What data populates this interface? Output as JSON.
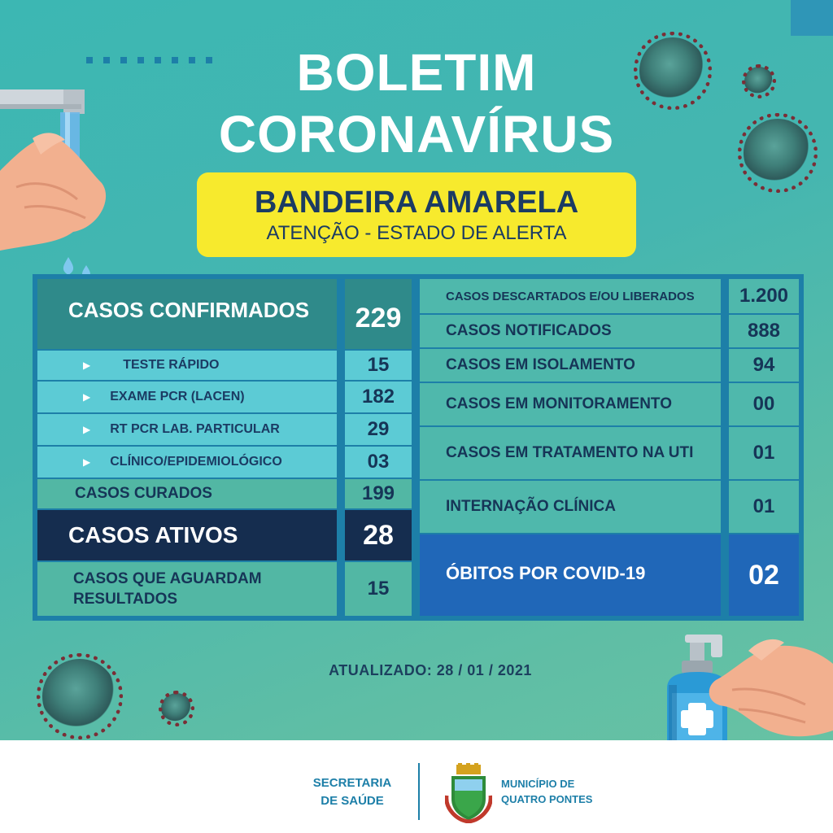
{
  "title": {
    "line1": "BOLETIM",
    "line2": "CORONAVÍRUS"
  },
  "flag": {
    "heading": "BANDEIRA AMARELA",
    "subtitle": "ATENÇÃO - ESTADO DE ALERTA",
    "color": "#f7ea2d"
  },
  "left_table": {
    "confirmed": {
      "label": "CASOS CONFIRMADOS",
      "value": "229"
    },
    "breakdown": [
      {
        "label": "TESTE RÁPIDO",
        "value": "15"
      },
      {
        "label": "EXAME PCR (LACEN)",
        "value": "182"
      },
      {
        "label": "RT PCR LAB. PARTICULAR",
        "value": "29"
      },
      {
        "label": "CLÍNICO/EPIDEMIOLÓGICO",
        "value": "03"
      }
    ],
    "cured": {
      "label": "CASOS CURADOS",
      "value": "199"
    },
    "active": {
      "label": "CASOS ATIVOS",
      "value": "28"
    },
    "awaiting": {
      "label_line1": "CASOS QUE AGUARDAM",
      "label_line2": "RESULTADOS",
      "value": "15"
    }
  },
  "right_table": [
    {
      "label": "CASOS DESCARTADOS E/OU LIBERADOS",
      "value": "1.200"
    },
    {
      "label": "CASOS NOTIFICADOS",
      "value": "888"
    },
    {
      "label": "CASOS EM ISOLAMENTO",
      "value": "94"
    },
    {
      "label": "CASOS EM MONITORAMENTO",
      "value": "00"
    },
    {
      "label": "CASOS EM TRATAMENTO NA UTI",
      "value": "01"
    },
    {
      "label": "INTERNAÇÃO CLÍNICA",
      "value": "01"
    },
    {
      "label": "ÓBITOS POR COVID-19",
      "value": "02"
    }
  ],
  "updated": "ATUALIZADO: 28 / 01 / 2021",
  "footer": {
    "secretaria_line1": "SECRETARIA",
    "secretaria_line2": "DE SAÚDE",
    "municipio_line1": "MUNICÍPIO DE",
    "municipio_line2": "QUATRO PONTES"
  },
  "icons": [
    "faucet-icon",
    "washing-hands-icon",
    "water-drop-icon",
    "virus-icon",
    "sanitizer-bottle-icon",
    "municipal-crest-icon",
    "bullet-arrow-icon"
  ],
  "colors": {
    "background": "#45b6b0",
    "board_frame": "#1d7fa8",
    "dark_teal": "#2f8a8a",
    "light_cyan": "#5ccbd5",
    "mint": "#52b7a4",
    "navy": "#152d4f",
    "blue": "#2067b8",
    "text_navy": "#163557"
  }
}
